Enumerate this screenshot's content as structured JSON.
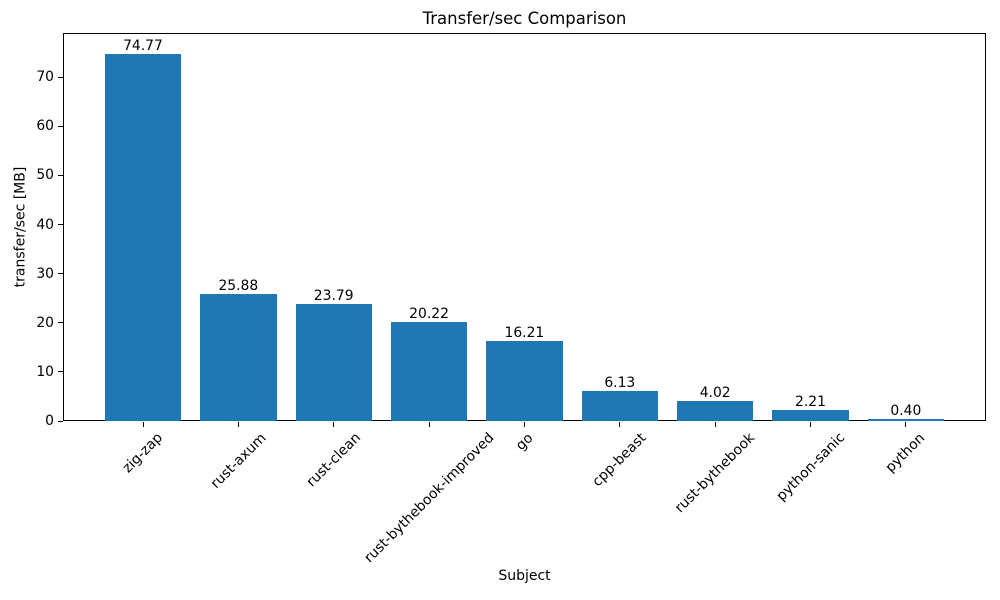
{
  "chart_data": {
    "type": "bar",
    "title": "Transfer/sec Comparison",
    "xlabel": "Subject",
    "ylabel": "transfer/sec [MB]",
    "categories": [
      "zig-zap",
      "rust-axum",
      "rust-clean",
      "rust-bythebook-improved",
      "go",
      "cpp-beast",
      "rust-bythebook",
      "python-sanic",
      "python"
    ],
    "values": [
      74.77,
      25.88,
      23.79,
      20.22,
      16.21,
      6.13,
      4.02,
      2.21,
      0.4
    ],
    "bar_labels": [
      "74.77",
      "25.88",
      "23.79",
      "20.22",
      "16.21",
      "6.13",
      "4.02",
      "2.21",
      "0.40"
    ],
    "yticks": [
      0,
      10,
      20,
      30,
      40,
      50,
      60,
      70
    ],
    "ylim": [
      0,
      79
    ],
    "xlim": [
      -0.84,
      8.84
    ],
    "bar_width_fraction": 0.8,
    "bar_color": "#1f77b4",
    "axis_color": "#000000",
    "text_color": "#000000",
    "background_color": "#ffffff",
    "grid": false,
    "legend": null,
    "x_tick_rotation_deg": 45
  }
}
